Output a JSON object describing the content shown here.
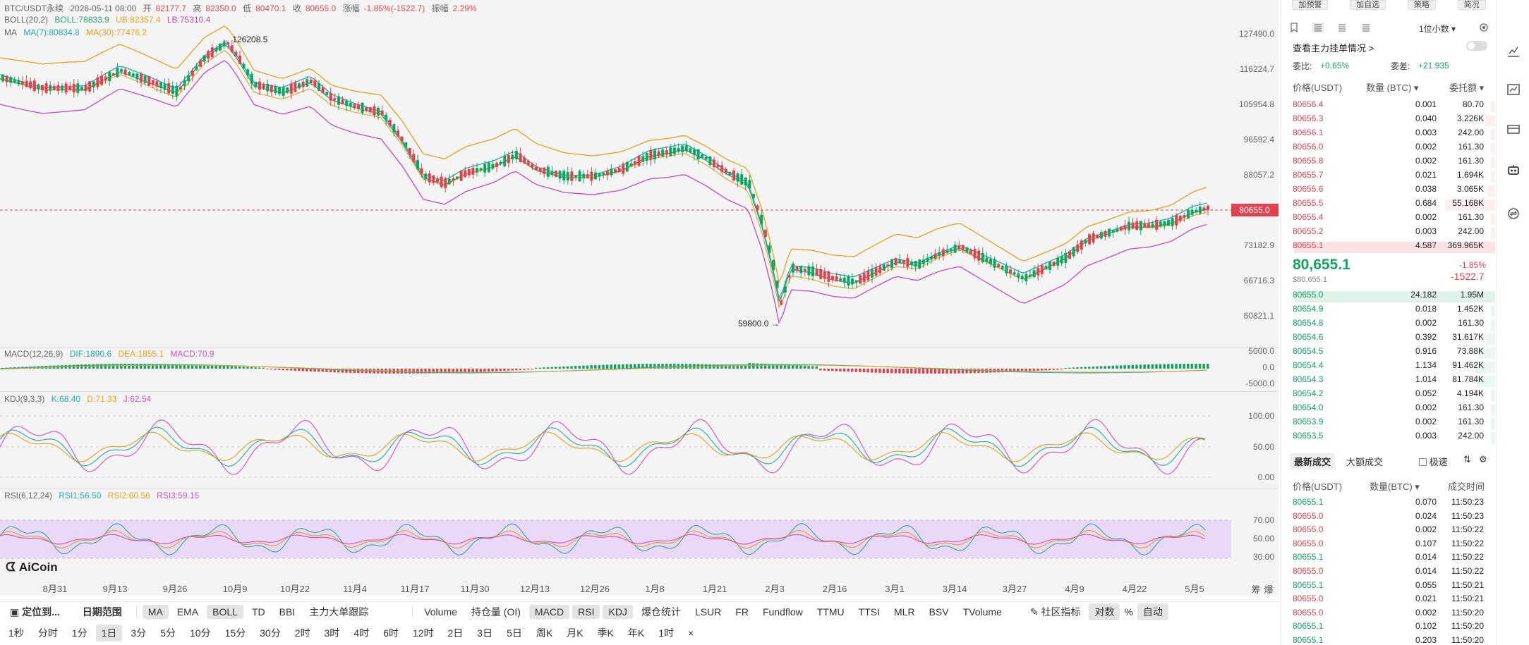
{
  "header": {
    "pair": "BTC/USDT永续",
    "date": "2026-05-11 08:00",
    "open_label": "开",
    "open": "82177.7",
    "high_label": "高",
    "high": "82350.0",
    "low_label": "低",
    "low": "80470.1",
    "close_label": "收",
    "close": "80655.0",
    "change_label": "涨幅",
    "change": "-1.85%(-1522.7)",
    "amplitude_label": "振幅",
    "amplitude": "2.29%"
  },
  "indicators": {
    "boll": {
      "name": "BOLL(20,2)",
      "boll": "BOLL:78833.9",
      "ub": "UB:82357.4",
      "lb": "LB:75310.4"
    },
    "ma": {
      "name": "MA",
      "ma7": "MA(7):80834.8",
      "ma30": "MA(30):77476.2"
    },
    "macd": {
      "name": "MACD(12,26,9)",
      "dif": "DIF:1890.6",
      "dea": "DEA:1855.1",
      "macd": "MACD:70.9"
    },
    "kdj": {
      "name": "KDJ(9,3,3)",
      "k": "K:68.40",
      "d": "D:71.33",
      "j": "J:62.54"
    },
    "rsi": {
      "name": "RSI(6,12,24)",
      "rsi1": "RSI1:56.50",
      "rsi2": "RSI2:60.56",
      "rsi3": "RSI3:59.15"
    }
  },
  "price_axis": [
    "127490.0",
    "116224.7",
    "105954.8",
    "96592.4",
    "88057.2",
    "80655.0",
    "73182.9",
    "66716.3",
    "60821.1"
  ],
  "macd_axis": [
    "5000.0",
    "0.0",
    "-5000.0"
  ],
  "kdj_axis": [
    "100.00",
    "50.00",
    "0.00"
  ],
  "rsi_axis": [
    "70.00",
    "50.00",
    "30.00"
  ],
  "annotations": {
    "high": "← 126208.5",
    "low": "59800.0 →"
  },
  "current_price_tag": "80655.0",
  "time_axis": [
    "8月31",
    "9月13",
    "9月26",
    "10月9",
    "10月22",
    "11月4",
    "11月17",
    "11月30",
    "12月13",
    "12月26",
    "1月8",
    "1月21",
    "2月3",
    "2月16",
    "3月1",
    "3月14",
    "3月27",
    "4月9",
    "4月22",
    "5月5"
  ],
  "time_axis_right": [
    "筹",
    "爆"
  ],
  "logo": "AiCoin",
  "toolbar1": {
    "locate": "定位到...",
    "date_range": "日期范围",
    "items": [
      "MA",
      "EMA",
      "BOLL",
      "TD",
      "BBI",
      "主力大单跟踪"
    ],
    "items2": [
      "Volume",
      "持仓量 (OI)",
      "MACD",
      "RSI",
      "KDJ",
      "爆仓统计",
      "LSUR",
      "FR",
      "Fundflow",
      "TTMU",
      "TTSI",
      "MLR",
      "BSV",
      "TVolume"
    ],
    "community": "社区指标",
    "compare": "对数",
    "percent": "%",
    "auto": "自动"
  },
  "toolbar2": {
    "intervals": [
      "1秒",
      "分时",
      "1分",
      "1日",
      "3分",
      "5分",
      "10分",
      "15分",
      "30分",
      "2时",
      "3时",
      "4时",
      "6时",
      "12时",
      "2日",
      "3日",
      "5日",
      "周K",
      "月K",
      "季K",
      "年K",
      "1时",
      "×"
    ],
    "active": "1日"
  },
  "side": {
    "top_buttons": [
      "加预警",
      "加自选",
      "策略",
      "简况"
    ],
    "decimals": "1位小数",
    "main_orders": "查看主力挂单情况 >",
    "ratio_label": "委比:",
    "ratio": "+0.65%",
    "diff_label": "委差:",
    "diff": "+21.935",
    "ob_headers": [
      "价格(USDT)",
      "数量 (BTC)",
      "委托额"
    ],
    "asks": [
      {
        "p": "80656.4",
        "q": "0.001",
        "t": "80.70",
        "d": 0.01
      },
      {
        "p": "80656.3",
        "q": "0.040",
        "t": "3.226K",
        "d": 0.05
      },
      {
        "p": "80656.1",
        "q": "0.003",
        "t": "242.00",
        "d": 0.01
      },
      {
        "p": "80656.0",
        "q": "0.002",
        "t": "161.30",
        "d": 0.01
      },
      {
        "p": "80655.8",
        "q": "0.002",
        "t": "161.30",
        "d": 0.01
      },
      {
        "p": "80655.7",
        "q": "0.021",
        "t": "1.694K",
        "d": 0.02
      },
      {
        "p": "80655.6",
        "q": "0.038",
        "t": "3.065K",
        "d": 0.04
      },
      {
        "p": "80655.5",
        "q": "0.684",
        "t": "55.168K",
        "d": 0.25
      },
      {
        "p": "80655.4",
        "q": "0.002",
        "t": "161.30",
        "d": 0.01
      },
      {
        "p": "80655.2",
        "q": "0.003",
        "t": "242.00",
        "d": 0.01
      },
      {
        "p": "80655.1",
        "q": "4.587",
        "t": "369.965K",
        "d": 1.0
      }
    ],
    "last_price": "80,655.1",
    "last_price_sub": "$80,655.1",
    "last_change_pct": "-1.85%",
    "last_change": "-1522.7",
    "bids": [
      {
        "p": "80655.0",
        "q": "24.182",
        "t": "1.95M",
        "d": 1.0
      },
      {
        "p": "80654.9",
        "q": "0.018",
        "t": "1.452K",
        "d": 0.02
      },
      {
        "p": "80654.8",
        "q": "0.002",
        "t": "161.30",
        "d": 0.01
      },
      {
        "p": "80654.6",
        "q": "0.392",
        "t": "31.617K",
        "d": 0.05
      },
      {
        "p": "80654.5",
        "q": "0.916",
        "t": "73.88K",
        "d": 0.08
      },
      {
        "p": "80654.4",
        "q": "1.134",
        "t": "91.462K",
        "d": 0.1
      },
      {
        "p": "80654.3",
        "q": "1.014",
        "t": "81.784K",
        "d": 0.09
      },
      {
        "p": "80654.2",
        "q": "0.052",
        "t": "4.194K",
        "d": 0.02
      },
      {
        "p": "80654.0",
        "q": "0.002",
        "t": "161.30",
        "d": 0.01
      },
      {
        "p": "80653.9",
        "q": "0.002",
        "t": "161.30",
        "d": 0.01
      },
      {
        "p": "80653.5",
        "q": "0.003",
        "t": "242.00",
        "d": 0.01
      }
    ],
    "trade_tabs": [
      "最新成交",
      "大额成交"
    ],
    "fast_label": "极速",
    "trade_headers": [
      "价格(USDT)",
      "数量(BTC)",
      "成交时间"
    ],
    "trades": [
      {
        "p": "80655.1",
        "q": "0.070",
        "t": "11:50:23",
        "side": "buy"
      },
      {
        "p": "80655.0",
        "q": "0.024",
        "t": "11:50:23",
        "side": "sell"
      },
      {
        "p": "80655.0",
        "q": "0.002",
        "t": "11:50:22",
        "side": "sell"
      },
      {
        "p": "80655.0",
        "q": "0.107",
        "t": "11:50:22",
        "side": "sell"
      },
      {
        "p": "80655.1",
        "q": "0.014",
        "t": "11:50:22",
        "side": "buy"
      },
      {
        "p": "80655.0",
        "q": "0.014",
        "t": "11:50:22",
        "side": "sell"
      },
      {
        "p": "80655.1",
        "q": "0.055",
        "t": "11:50:21",
        "side": "buy"
      },
      {
        "p": "80655.0",
        "q": "0.021",
        "t": "11:50:21",
        "side": "sell"
      },
      {
        "p": "80655.0",
        "q": "0.002",
        "t": "11:50:20",
        "side": "sell"
      },
      {
        "p": "80655.1",
        "q": "0.102",
        "t": "11:50:20",
        "side": "buy"
      },
      {
        "p": "80655.1",
        "q": "0.203",
        "t": "11:50:20",
        "side": "buy"
      }
    ]
  },
  "colors": {
    "up": "#13a463",
    "down": "#e0424f",
    "boll_mid": "#23a47a",
    "boll_ub": "#e1a21a",
    "boll_lb": "#c04ac0",
    "ma7": "#22a9b0",
    "ma30": "#e1a21a"
  }
}
